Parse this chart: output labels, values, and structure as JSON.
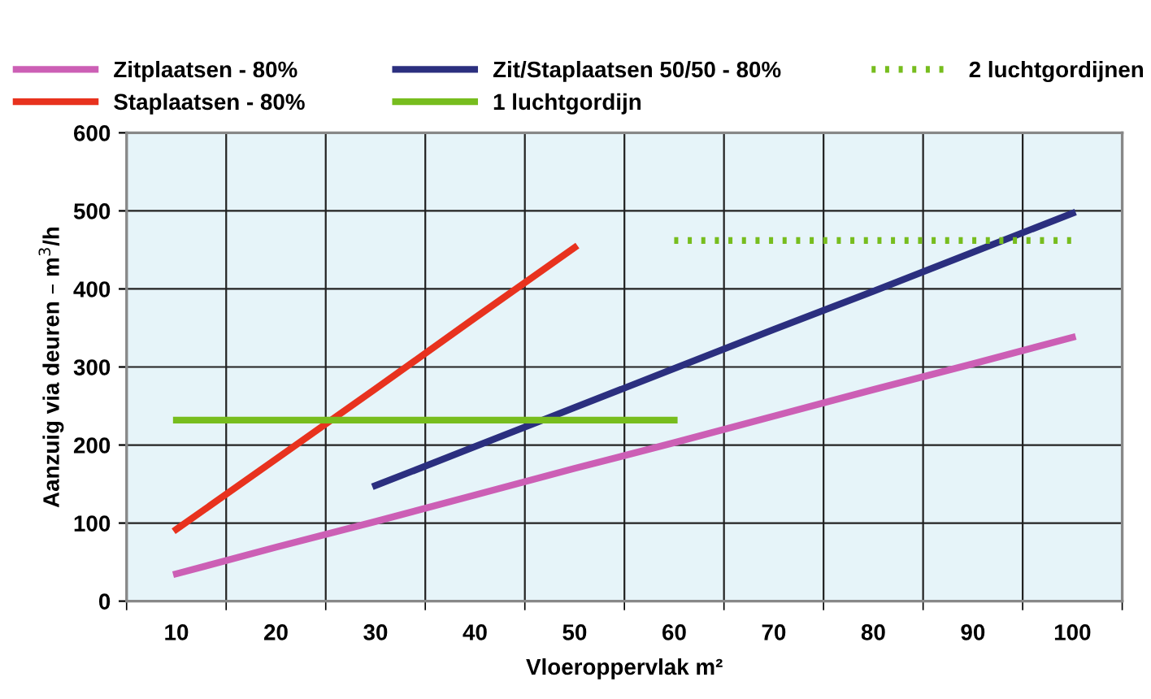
{
  "chart_data": {
    "type": "line",
    "xlabel": "Vloeroppervlak m²",
    "ylabel": "Aanzuig via deuren – m$^{3}$/h",
    "categories": [
      "10",
      "20",
      "30",
      "40",
      "50",
      "60",
      "70",
      "80",
      "90",
      "100"
    ],
    "series": [
      {
        "name": "Zitplaatsen - 80%",
        "color": "#cc5fb5",
        "values": [
          35,
          69,
          102,
          136,
          170,
          203,
          237,
          271,
          304,
          338
        ]
      },
      {
        "name": "Staplaatsen - 80%",
        "color": "#e8321e",
        "values": [
          92,
          182,
          272,
          363,
          453,
          null,
          null,
          null,
          null,
          null
        ]
      },
      {
        "name": "Zit/Staplaatsen 50/50 - 80%",
        "color": "#2b2f7f",
        "values": [
          null,
          null,
          148,
          198,
          248,
          298,
          348,
          397,
          447,
          497
        ]
      },
      {
        "name": "1 luchtgordijn",
        "color": "#77bd1e",
        "values": [
          232,
          232,
          232,
          232,
          232,
          232,
          null,
          null,
          null,
          null
        ]
      },
      {
        "name": "2 luchtgordijnen",
        "color": "#77bd1e",
        "line_style": "dotted",
        "values": [
          null,
          null,
          null,
          null,
          null,
          462,
          462,
          462,
          462,
          462
        ]
      }
    ],
    "ylim": [
      0,
      600
    ],
    "yticks": [
      0,
      100,
      200,
      300,
      400,
      500,
      600
    ],
    "grid": true,
    "legend": "top",
    "marker": "none",
    "line_style": "solid"
  }
}
